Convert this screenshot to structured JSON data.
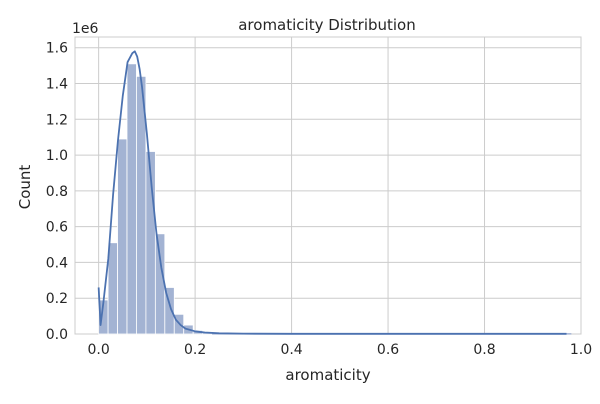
{
  "chart_data": {
    "type": "bar",
    "title": "aromaticity Distribution",
    "xlabel": "aromaticity",
    "ylabel": "Count",
    "y_offset_label": "1e6",
    "xlim": [
      -0.049,
      1.0
    ],
    "ylim": [
      0,
      1.66
    ],
    "y_unit_multiplier": 1000000,
    "x_ticks": [
      0.0,
      0.2,
      0.4,
      0.6,
      0.8,
      1.0
    ],
    "x_tick_labels": [
      "0.0",
      "0.2",
      "0.4",
      "0.6",
      "0.8",
      "1.0"
    ],
    "y_ticks": [
      0.0,
      0.2,
      0.4,
      0.6,
      0.8,
      1.0,
      1.2,
      1.4,
      1.6
    ],
    "y_tick_labels": [
      "0.0",
      "0.2",
      "0.4",
      "0.6",
      "0.8",
      "1.0",
      "1.2",
      "1.4",
      "1.6"
    ],
    "grid": true,
    "legend": "none",
    "bin_width": 0.0196,
    "bins_x_start": [
      0.0,
      0.0196,
      0.0392,
      0.0588,
      0.0784,
      0.098,
      0.1176,
      0.1372,
      0.1568,
      0.1764,
      0.196,
      0.2156
    ],
    "bins_values_millions": [
      0.19,
      0.51,
      1.09,
      1.51,
      1.44,
      1.02,
      0.56,
      0.26,
      0.11,
      0.05,
      0.02,
      0.01
    ],
    "tail_bar": {
      "x_start": 0.2352,
      "x_end": 0.98,
      "value_millions": 0.005
    },
    "kde_curve": {
      "x": [
        0.0,
        0.004,
        0.01,
        0.02,
        0.03,
        0.04,
        0.05,
        0.06,
        0.07,
        0.075,
        0.08,
        0.085,
        0.09,
        0.1,
        0.11,
        0.12,
        0.13,
        0.14,
        0.15,
        0.16,
        0.17,
        0.18,
        0.2,
        0.22,
        0.25,
        0.3,
        0.4,
        0.6,
        0.8,
        0.97
      ],
      "y": [
        0.26,
        0.05,
        0.18,
        0.42,
        0.78,
        1.08,
        1.33,
        1.52,
        1.57,
        1.58,
        1.55,
        1.48,
        1.38,
        1.12,
        0.82,
        0.56,
        0.37,
        0.23,
        0.14,
        0.08,
        0.05,
        0.03,
        0.015,
        0.008,
        0.004,
        0.002,
        0.001,
        0.001,
        0.001,
        0.001
      ]
    },
    "colors": {
      "bar_fill": "#a3b3d3",
      "bar_stroke": "#ffffff",
      "kde_line": "#4c72b0",
      "grid": "#cccccc",
      "text": "#262626"
    }
  }
}
